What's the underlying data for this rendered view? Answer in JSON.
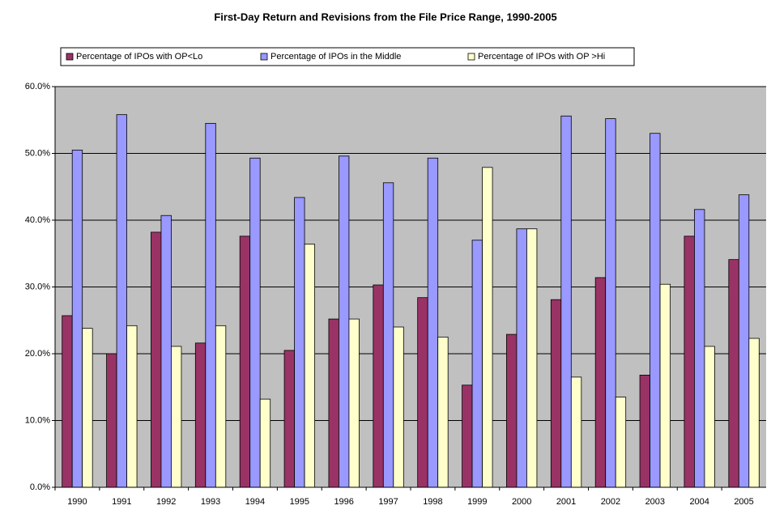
{
  "chart_data": {
    "type": "bar",
    "title": "First-Day Return and Revisions from the File Price Range, 1990-2005",
    "categories": [
      "1990",
      "1991",
      "1992",
      "1993",
      "1994",
      "1995",
      "1996",
      "1997",
      "1998",
      "1999",
      "2000",
      "2001",
      "2002",
      "2003",
      "2004",
      "2005"
    ],
    "series": [
      {
        "name": "Percentage of IPOs with OP<Lo",
        "color": "#993366",
        "values": [
          25.7,
          20.0,
          38.2,
          21.6,
          37.6,
          20.5,
          25.2,
          30.3,
          28.4,
          15.3,
          22.9,
          28.1,
          31.4,
          16.8,
          37.6,
          34.1
        ]
      },
      {
        "name": "Percentage of IPOs in the Middle",
        "color": "#9999ff",
        "values": [
          50.5,
          55.8,
          40.7,
          54.5,
          49.3,
          43.4,
          49.6,
          45.6,
          49.3,
          37.0,
          38.7,
          55.6,
          55.2,
          53.0,
          41.6,
          43.8
        ]
      },
      {
        "name": "Percentage of IPOs with OP >Hi",
        "color": "#ffffcc",
        "values": [
          23.8,
          24.2,
          21.1,
          24.2,
          13.2,
          36.4,
          25.2,
          24.0,
          22.5,
          47.9,
          38.7,
          16.5,
          13.5,
          30.4,
          21.1,
          22.3
        ]
      }
    ],
    "ylim": [
      0,
      60
    ],
    "yticks": [
      {
        "value": 0,
        "label": "0.0%"
      },
      {
        "value": 10,
        "label": "10.0%"
      },
      {
        "value": 20,
        "label": "20.0%"
      },
      {
        "value": 30,
        "label": "30.0%"
      },
      {
        "value": 40,
        "label": "40.0%"
      },
      {
        "value": 50,
        "label": "50.0%"
      },
      {
        "value": 60,
        "label": "60.0%"
      }
    ],
    "grid": true,
    "legend": "top"
  }
}
